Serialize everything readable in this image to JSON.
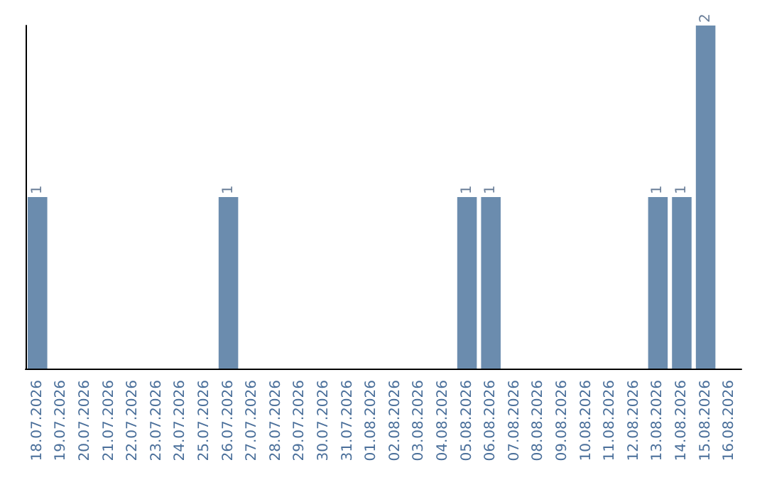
{
  "chart_data": {
    "type": "bar",
    "categories": [
      "18.07.2026",
      "19.07.2026",
      "20.07.2026",
      "21.07.2026",
      "22.07.2026",
      "23.07.2026",
      "24.07.2026",
      "25.07.2026",
      "26.07.2026",
      "27.07.2026",
      "28.07.2026",
      "29.07.2026",
      "30.07.2026",
      "31.07.2026",
      "01.08.2026",
      "02.08.2026",
      "03.08.2026",
      "04.08.2026",
      "05.08.2026",
      "06.08.2026",
      "07.08.2026",
      "08.08.2026",
      "09.08.2026",
      "10.08.2026",
      "11.08.2026",
      "12.08.2026",
      "13.08.2026",
      "14.08.2026",
      "15.08.2026",
      "16.08.2026"
    ],
    "values": [
      1,
      0,
      0,
      0,
      0,
      0,
      0,
      0,
      1,
      0,
      0,
      0,
      0,
      0,
      0,
      0,
      0,
      0,
      1,
      1,
      0,
      0,
      0,
      0,
      0,
      0,
      1,
      1,
      2,
      0
    ],
    "value_labels": [
      "1",
      null,
      null,
      null,
      null,
      null,
      null,
      null,
      "1",
      null,
      null,
      null,
      null,
      null,
      null,
      null,
      null,
      null,
      "1",
      "1",
      null,
      null,
      null,
      null,
      null,
      null,
      "1",
      "1",
      "2",
      null
    ],
    "color": "#6b8cae",
    "grid": false,
    "tick_labels": "x"
  }
}
